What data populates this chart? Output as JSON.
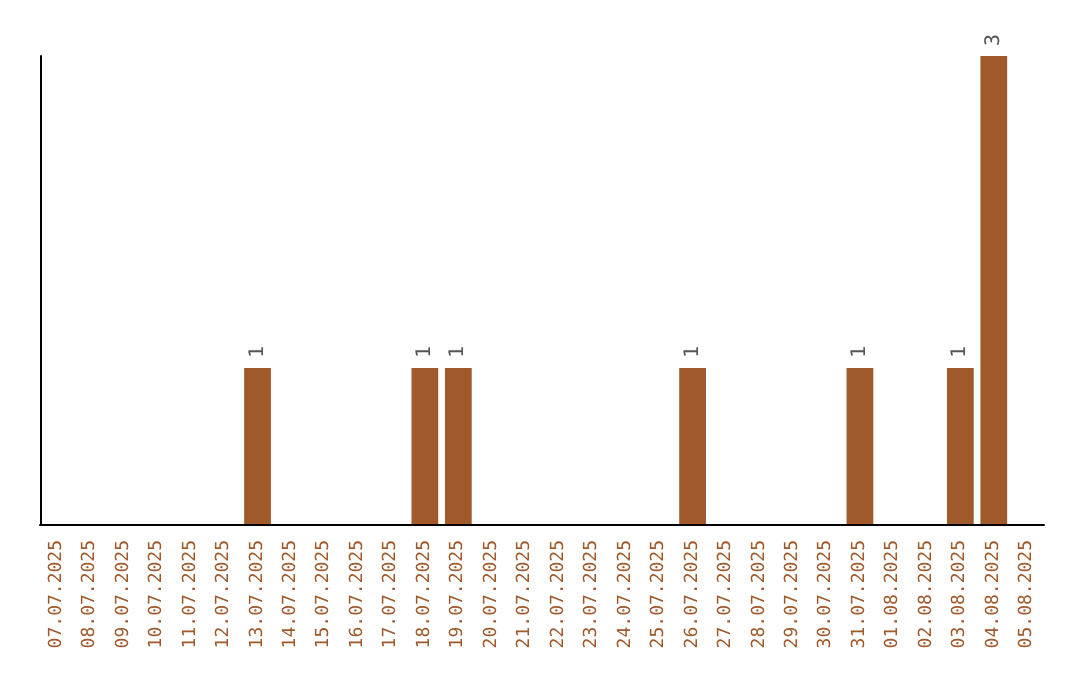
{
  "chart_data": {
    "type": "bar",
    "categories": [
      "07.07.2025",
      "08.07.2025",
      "09.07.2025",
      "10.07.2025",
      "11.07.2025",
      "12.07.2025",
      "13.07.2025",
      "14.07.2025",
      "15.07.2025",
      "16.07.2025",
      "17.07.2025",
      "18.07.2025",
      "19.07.2025",
      "20.07.2025",
      "21.07.2025",
      "22.07.2025",
      "23.07.2025",
      "24.07.2025",
      "25.07.2025",
      "26.07.2025",
      "27.07.2025",
      "28.07.2025",
      "29.07.2025",
      "30.07.2025",
      "31.07.2025",
      "01.08.2025",
      "02.08.2025",
      "03.08.2025",
      "04.08.2025",
      "05.08.2025"
    ],
    "values": [
      0,
      0,
      0,
      0,
      0,
      0,
      1,
      0,
      0,
      0,
      0,
      1,
      1,
      0,
      0,
      0,
      0,
      0,
      0,
      1,
      0,
      0,
      0,
      0,
      1,
      0,
      0,
      1,
      3,
      0
    ],
    "value_labels": [
      null,
      null,
      null,
      null,
      null,
      null,
      "1",
      null,
      null,
      null,
      null,
      "1",
      "1",
      null,
      null,
      null,
      null,
      null,
      null,
      "1",
      null,
      null,
      null,
      null,
      "1",
      null,
      null,
      "1",
      "3",
      null
    ],
    "color": "#a0592a",
    "tick_labels": "x"
  }
}
